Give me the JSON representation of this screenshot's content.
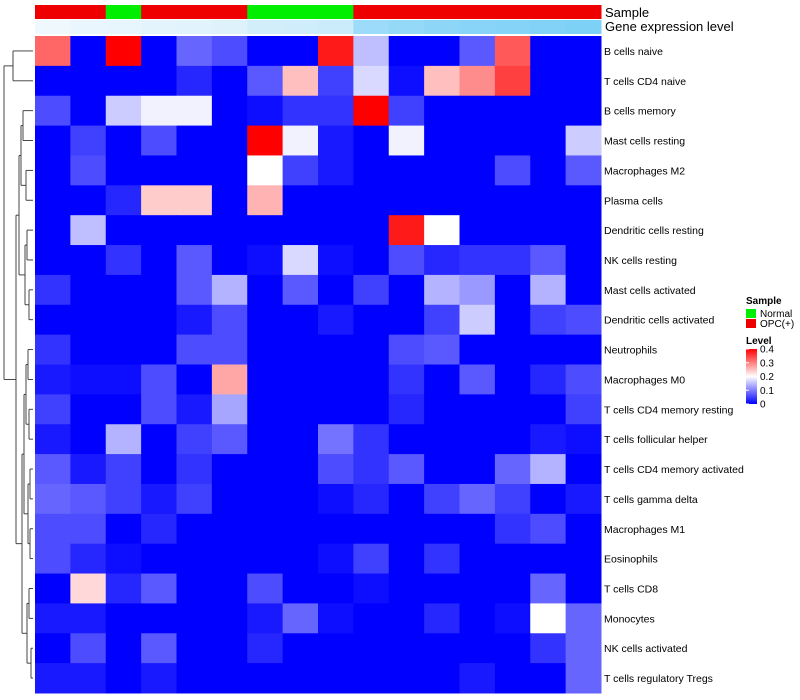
{
  "chart_data": {
    "type": "heatmap",
    "title": "",
    "annotation_tracks": [
      {
        "name": "Sample",
        "values": [
          "OPC(+)",
          "OPC(+)",
          "Normal",
          "OPC(+)",
          "OPC(+)",
          "OPC(+)",
          "Normal",
          "Normal",
          "Normal",
          "OPC(+)",
          "OPC(+)",
          "OPC(+)",
          "OPC(+)",
          "OPC(+)",
          "OPC(+)",
          "OPC(+)"
        ]
      },
      {
        "name": "Gene expression level",
        "values": [
          0.02,
          0.05,
          0.07,
          0.09,
          0.11,
          0.13,
          0.2,
          0.22,
          0.25,
          0.55,
          0.6,
          0.65,
          0.68,
          0.7,
          0.72,
          0.75
        ]
      }
    ],
    "rows": [
      "B cells naive",
      "T cells CD4 naive",
      "B cells memory",
      "Mast cells resting",
      "Macrophages M2",
      "Plasma cells",
      "Dendritic cells resting",
      "NK cells resting",
      "Mast cells activated",
      "Dendritic cells activated",
      "Neutrophils",
      "Macrophages M0",
      "T cells CD4 memory resting",
      "T cells follicular helper",
      "T cells CD4 memory activated",
      "T cells gamma delta",
      "Macrophages M1",
      "Eosinophils",
      "T cells CD8",
      "Monocytes",
      "NK cells activated",
      "T cells regulatory  Tregs"
    ],
    "values": [
      [
        0.32,
        0,
        0.4,
        0,
        0.08,
        0.06,
        0,
        0,
        0.38,
        0.15,
        0,
        0,
        0.07,
        0.33,
        0,
        0
      ],
      [
        0,
        0,
        0,
        0,
        0.03,
        0,
        0.07,
        0.25,
        0.05,
        0.17,
        0.01,
        0.25,
        0.29,
        0.35,
        0,
        0
      ],
      [
        0.06,
        0,
        0.16,
        0.19,
        0.19,
        0,
        0.01,
        0.04,
        0.04,
        0.4,
        0.05,
        0,
        0,
        0,
        0,
        0
      ],
      [
        0,
        0.05,
        0,
        0.06,
        0,
        0,
        0.4,
        0.19,
        0.02,
        0,
        0.19,
        0,
        0,
        0,
        0,
        0.16
      ],
      [
        0,
        0.06,
        0,
        0,
        0,
        0,
        0.2,
        0.05,
        0.02,
        0,
        0,
        0,
        0,
        0.06,
        0,
        0.07
      ],
      [
        0,
        0,
        0.03,
        0.24,
        0.24,
        0,
        0.26,
        0,
        0,
        0,
        0,
        0,
        0,
        0,
        0,
        0
      ],
      [
        0,
        0.15,
        0,
        0,
        0,
        0,
        0,
        0,
        0,
        0,
        0.38,
        0.2,
        0,
        0,
        0,
        0
      ],
      [
        0,
        0,
        0.04,
        0,
        0.07,
        0,
        0.01,
        0.17,
        0.01,
        0,
        0.06,
        0.03,
        0.04,
        0.04,
        0.07,
        0
      ],
      [
        0.04,
        0,
        0,
        0,
        0.07,
        0.14,
        0,
        0.07,
        0,
        0.05,
        0,
        0.14,
        0.12,
        0,
        0.14,
        0
      ],
      [
        0,
        0,
        0,
        0,
        0.02,
        0.06,
        0,
        0,
        0.02,
        0,
        0,
        0.05,
        0.16,
        0,
        0.05,
        0.06
      ],
      [
        0.04,
        0,
        0,
        0,
        0.06,
        0.06,
        0,
        0,
        0,
        0,
        0.06,
        0.07,
        0,
        0,
        0,
        0
      ],
      [
        0.02,
        0.01,
        0.01,
        0.06,
        0,
        0.27,
        0,
        0,
        0,
        0,
        0.04,
        0,
        0.07,
        0,
        0.03,
        0.06
      ],
      [
        0.05,
        0,
        0,
        0.06,
        0.02,
        0.13,
        0,
        0,
        0,
        0,
        0.03,
        0,
        0,
        0,
        0,
        0.05
      ],
      [
        0.02,
        0,
        0.14,
        0,
        0.05,
        0.07,
        0,
        0,
        0.09,
        0.04,
        0,
        0,
        0,
        0,
        0.02,
        0.01
      ],
      [
        0.07,
        0.02,
        0.05,
        0,
        0.04,
        0,
        0,
        0,
        0.06,
        0.04,
        0.07,
        0,
        0,
        0.08,
        0.14,
        0
      ],
      [
        0.08,
        0.07,
        0.05,
        0.02,
        0.05,
        0,
        0,
        0,
        0.01,
        0.03,
        0,
        0.05,
        0.08,
        0.05,
        0,
        0.02
      ],
      [
        0.06,
        0.06,
        0,
        0.03,
        0,
        0,
        0,
        0,
        0,
        0,
        0,
        0,
        0,
        0.04,
        0.06,
        0
      ],
      [
        0.06,
        0.03,
        0.01,
        0,
        0,
        0,
        0,
        0,
        0.01,
        0.05,
        0,
        0.04,
        0,
        0,
        0,
        0
      ],
      [
        0,
        0.23,
        0.03,
        0.07,
        0,
        0,
        0.06,
        0,
        0,
        0.01,
        0,
        0,
        0,
        0,
        0.08,
        0
      ],
      [
        0.02,
        0.02,
        0,
        0,
        0,
        0,
        0.02,
        0.08,
        0.01,
        0,
        0,
        0.03,
        0,
        0.01,
        0.2,
        0.08
      ],
      [
        0,
        0.06,
        0,
        0.07,
        0,
        0,
        0.03,
        0,
        0,
        0,
        0,
        0,
        0,
        0,
        0.04,
        0.08
      ],
      [
        0.02,
        0.02,
        0,
        0.02,
        0,
        0,
        0,
        0,
        0,
        0,
        0,
        0,
        0.02,
        0,
        0,
        0.08
      ]
    ],
    "legend": {
      "sample_title": "Sample",
      "sample_items": [
        {
          "label": "Normal",
          "color": "#00ee00"
        },
        {
          "label": "OPC(+)",
          "color": "#ee0000"
        }
      ],
      "level_title": "Level",
      "level_ticks": [
        "0.4",
        "0.3",
        "0.2",
        "0.1",
        "0"
      ],
      "level_range": [
        0,
        0.4
      ]
    },
    "colors": {
      "low": "#0000ff",
      "mid": "#ffffff",
      "high": "#ff0000",
      "normal": "#00ee00",
      "opc": "#ee0000",
      "expr_low": "#f2f9fd",
      "expr_high": "#56c3f5"
    },
    "dendrogram_row_order_note": ""
  }
}
